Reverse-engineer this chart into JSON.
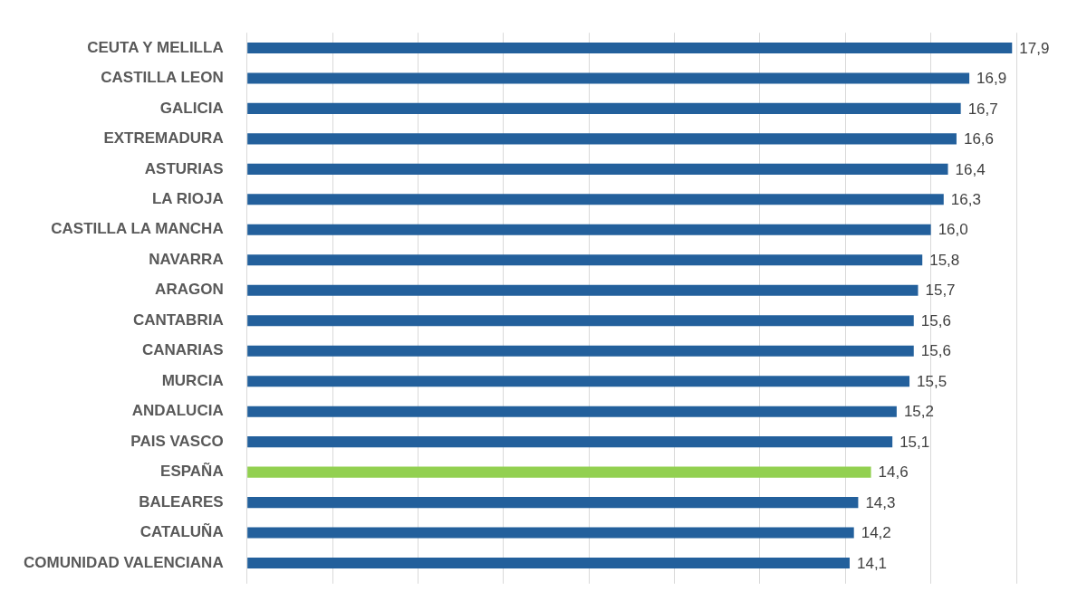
{
  "chart_data": {
    "type": "bar",
    "orientation": "horizontal",
    "categories": [
      "CEUTA Y MELILLA",
      "CASTILLA LEON",
      "GALICIA",
      "EXTREMADURA",
      "ASTURIAS",
      "LA RIOJA",
      "CASTILLA LA MANCHA",
      "NAVARRA",
      "ARAGON",
      "CANTABRIA",
      "CANARIAS",
      "MURCIA",
      "ANDALUCIA",
      "PAIS VASCO",
      "ESPAÑA",
      "BALEARES",
      "CATALUÑA",
      "COMUNIDAD VALENCIANA"
    ],
    "values": [
      17.9,
      16.9,
      16.7,
      16.6,
      16.4,
      16.3,
      16.0,
      15.8,
      15.7,
      15.6,
      15.6,
      15.5,
      15.2,
      15.1,
      14.6,
      14.3,
      14.2,
      14.1
    ],
    "value_labels": [
      "17,9",
      "16,9",
      "16,7",
      "16,6",
      "16,4",
      "16,3",
      "16,0",
      "15,8",
      "15,7",
      "15,6",
      "15,6",
      "15,5",
      "15,2",
      "15,1",
      "14,6",
      "14,3",
      "14,2",
      "14,1"
    ],
    "colors": [
      "#23609c",
      "#23609c",
      "#23609c",
      "#23609c",
      "#23609c",
      "#23609c",
      "#23609c",
      "#23609c",
      "#23609c",
      "#23609c",
      "#23609c",
      "#23609c",
      "#23609c",
      "#23609c",
      "#92d050",
      "#23609c",
      "#23609c",
      "#23609c"
    ],
    "xlim": [
      0,
      18
    ],
    "xticks": [
      {
        "value": 0,
        "label": null
      },
      {
        "value": 2,
        "label": null
      },
      {
        "value": 4,
        "label": null
      },
      {
        "value": 6,
        "label": null
      },
      {
        "value": 8,
        "label": null
      },
      {
        "value": 10,
        "label": null
      },
      {
        "value": 12,
        "label": null
      },
      {
        "value": 14,
        "label": null
      },
      {
        "value": 16,
        "label": null
      },
      {
        "value": 18,
        "label": null
      }
    ],
    "grid": "x",
    "tick_labels": "y",
    "legend": false
  }
}
